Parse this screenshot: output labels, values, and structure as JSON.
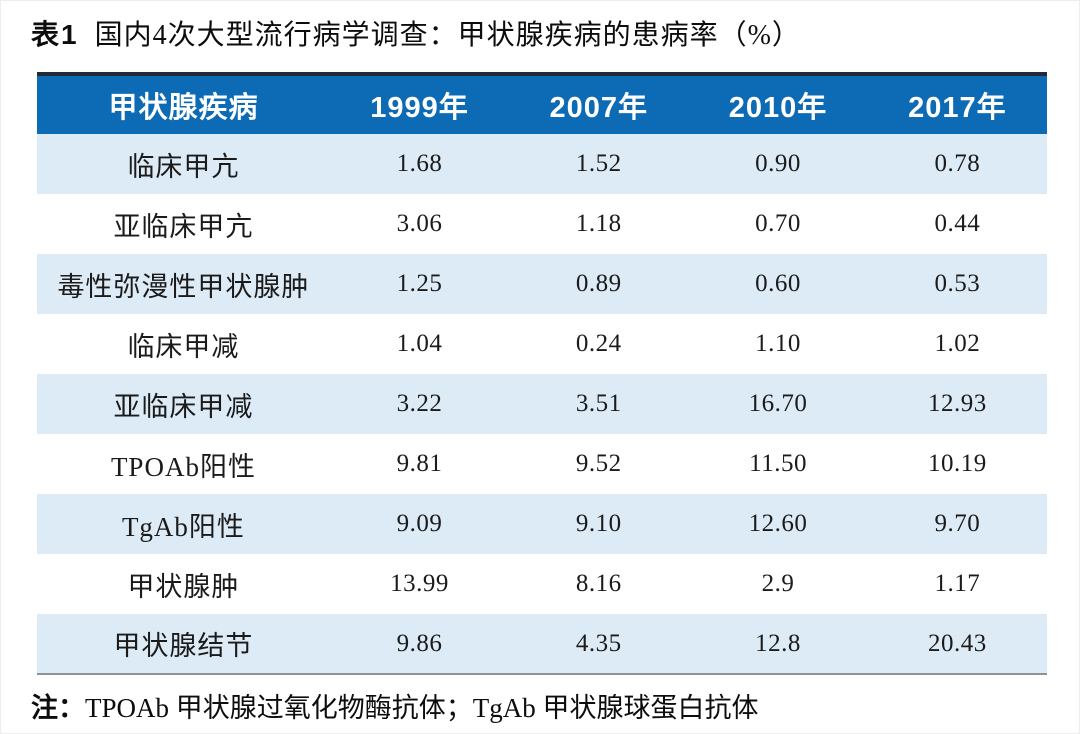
{
  "caption": {
    "label": "表1",
    "text": "国内4次大型流行病学调查：甲状腺疾病的患病率（%）"
  },
  "chart_data": {
    "type": "table",
    "title": "表1 国内4次大型流行病学调查：甲状腺疾病的患病率（%）",
    "columns": [
      "甲状腺疾病",
      "1999年",
      "2007年",
      "2010年",
      "2017年"
    ],
    "rows": [
      [
        "临床甲亢",
        "1.68",
        "1.52",
        "0.90",
        "0.78"
      ],
      [
        "亚临床甲亢",
        "3.06",
        "1.18",
        "0.70",
        "0.44"
      ],
      [
        "毒性弥漫性甲状腺肿",
        "1.25",
        "0.89",
        "0.60",
        "0.53"
      ],
      [
        "临床甲减",
        "1.04",
        "0.24",
        "1.10",
        "1.02"
      ],
      [
        "亚临床甲减",
        "3.22",
        "3.51",
        "16.70",
        "12.93"
      ],
      [
        "TPOAb阳性",
        "9.81",
        "9.52",
        "11.50",
        "10.19"
      ],
      [
        "TgAb阳性",
        "9.09",
        "9.10",
        "12.60",
        "9.70"
      ],
      [
        "甲状腺肿",
        "13.99",
        "8.16",
        "2.9",
        "1.17"
      ],
      [
        "甲状腺结节",
        "9.86",
        "4.35",
        "12.8",
        "20.43"
      ]
    ],
    "footnote": "注：TPOAb 甲状腺过氧化物酶抗体；TgAb 甲状腺球蛋白抗体"
  },
  "note": {
    "label": "注：",
    "text": "TPOAb 甲状腺过氧化物酶抗体；TgAb 甲状腺球蛋白抗体"
  },
  "colors": {
    "header_bg": "#0d6ab4",
    "header_text": "#ffffff",
    "alt_row_bg": "#ddebf6",
    "top_border": "#212b36",
    "bottom_border": "#8d9297"
  }
}
